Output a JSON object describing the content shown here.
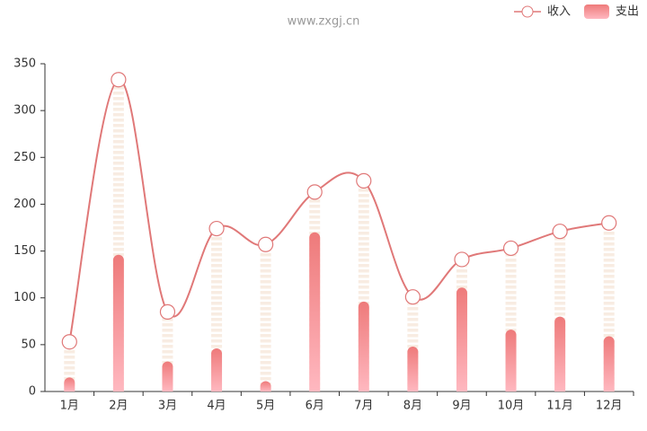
{
  "chart_data": {
    "type": "bar",
    "title": "www.zxgj.cn",
    "categories": [
      "1月",
      "2月",
      "3月",
      "4月",
      "5月",
      "6月",
      "7月",
      "8月",
      "9月",
      "10月",
      "11月",
      "12月"
    ],
    "series": [
      {
        "name": "收入",
        "type": "line",
        "color": "#e07878",
        "values": [
          53,
          333,
          85,
          174,
          157,
          213,
          225,
          101,
          141,
          153,
          171,
          180
        ]
      },
      {
        "name": "支出",
        "type": "bar",
        "color": "#f08585",
        "values": [
          15,
          146,
          32,
          46,
          11,
          170,
          96,
          48,
          111,
          66,
          80,
          59
        ]
      }
    ],
    "ylim": [
      0,
      350
    ],
    "yticks": [
      0,
      50,
      100,
      150,
      200,
      250,
      300,
      350
    ],
    "legend": "top-right"
  }
}
